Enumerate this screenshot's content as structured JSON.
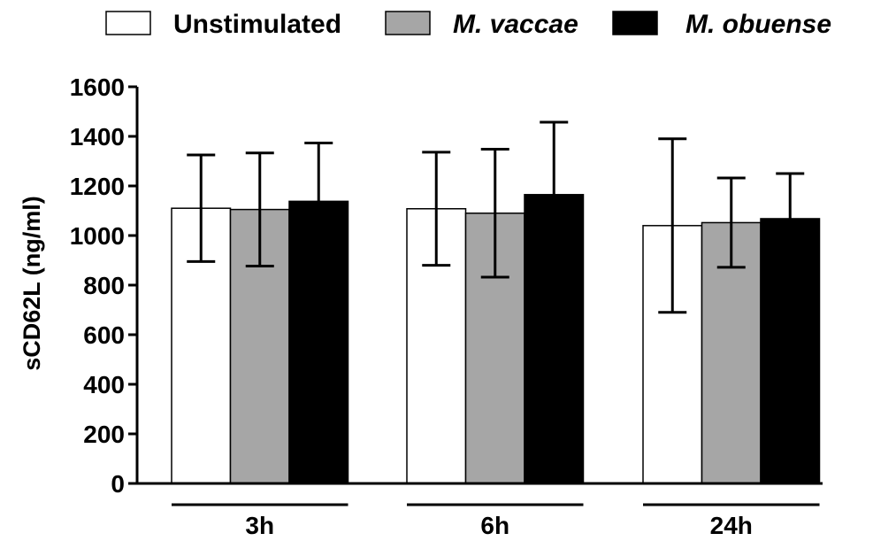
{
  "chart_data": {
    "type": "bar",
    "title": "",
    "xlabel": "",
    "ylabel": "sCD62L (ng/ml)",
    "ylim": [
      0,
      1600
    ],
    "yticks": [
      0,
      200,
      400,
      600,
      800,
      1000,
      1200,
      1400,
      1600
    ],
    "grid": false,
    "legend_position": "top",
    "categories": [
      "3h",
      "6h",
      "24h"
    ],
    "series": [
      {
        "name": "Unstimulated",
        "color": "#ffffff",
        "values": [
          1110,
          1108,
          1040
        ],
        "error": [
          215,
          228,
          350
        ]
      },
      {
        "name": "M. vaccae",
        "color": "#a6a6a6",
        "values": [
          1105,
          1090,
          1052
        ],
        "error": [
          228,
          258,
          180
        ]
      },
      {
        "name": "M. obuense",
        "color": "#000000",
        "values": [
          1138,
          1165,
          1068
        ],
        "error": [
          235,
          292,
          182
        ]
      }
    ]
  }
}
